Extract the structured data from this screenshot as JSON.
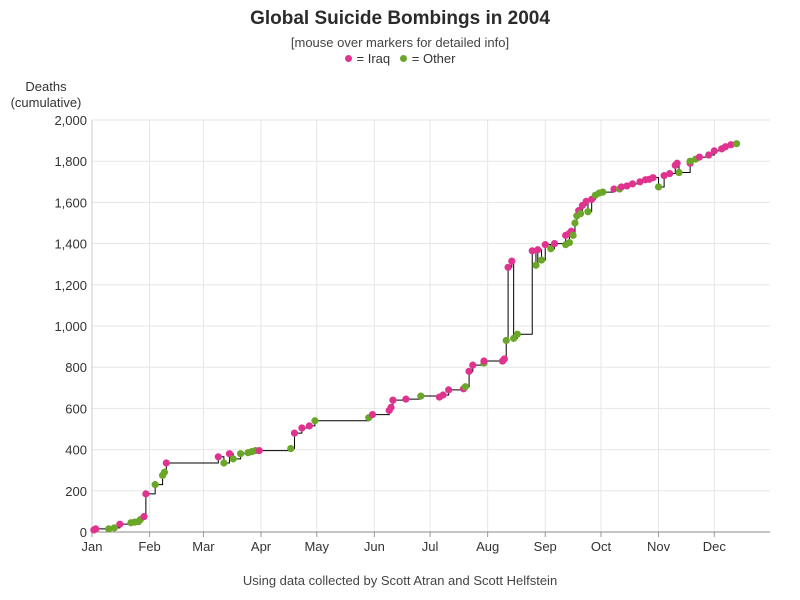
{
  "chart_data": {
    "type": "line",
    "title": "Global Suicide Bombings in 2004",
    "subtitle": "[mouse over markers for detailed info]",
    "ylabel": "Deaths (cumulative)",
    "ylabel_lines": [
      "Deaths",
      "(cumulative)"
    ],
    "xlabel": "",
    "footer": "Using data collected by Scott Atran and Scott Helfstein",
    "ylim": [
      0,
      2000
    ],
    "y_ticks": [
      0,
      200,
      400,
      600,
      800,
      1000,
      1200,
      1400,
      1600,
      1800,
      2000
    ],
    "y_tick_labels": [
      "0",
      "200",
      "400",
      "600",
      "800",
      "1,000",
      "1,200",
      "1,400",
      "1,600",
      "1,800",
      "2,000"
    ],
    "x_ticks": [
      1,
      32,
      61,
      92,
      122,
      153,
      183,
      214,
      245,
      275,
      306,
      336
    ],
    "x_tick_labels": [
      "Jan",
      "Feb",
      "Mar",
      "Apr",
      "May",
      "Jun",
      "Jul",
      "Aug",
      "Sep",
      "Oct",
      "Nov",
      "Dec"
    ],
    "xlim": [
      1,
      366
    ],
    "grid": true,
    "legend": [
      {
        "label": "= Iraq",
        "color": "#e0338f"
      },
      {
        "label": "= Other",
        "color": "#6aa628"
      }
    ],
    "line_color": "#000000",
    "series": [
      {
        "name": "Iraq",
        "color": "#e0338f",
        "points": [
          [
            2,
            10
          ],
          [
            3,
            15
          ],
          [
            16,
            38
          ],
          [
            29,
            75
          ],
          [
            30,
            185
          ],
          [
            41,
            335
          ],
          [
            69,
            365
          ],
          [
            75,
            380
          ],
          [
            91,
            395
          ],
          [
            110,
            480
          ],
          [
            114,
            505
          ],
          [
            118,
            515
          ],
          [
            152,
            570
          ],
          [
            161,
            590
          ],
          [
            162,
            605
          ],
          [
            163,
            640
          ],
          [
            170,
            645
          ],
          [
            188,
            655
          ],
          [
            190,
            665
          ],
          [
            193,
            690
          ],
          [
            201,
            695
          ],
          [
            204,
            780
          ],
          [
            206,
            810
          ],
          [
            212,
            830
          ],
          [
            222,
            830
          ],
          [
            223,
            840
          ],
          [
            225,
            1285
          ],
          [
            227,
            1315
          ],
          [
            238,
            1365
          ],
          [
            241,
            1370
          ],
          [
            245,
            1395
          ],
          [
            250,
            1400
          ],
          [
            256,
            1440
          ],
          [
            258,
            1450
          ],
          [
            259,
            1460
          ],
          [
            263,
            1560
          ],
          [
            265,
            1585
          ],
          [
            267,
            1605
          ],
          [
            270,
            1615
          ],
          [
            282,
            1665
          ],
          [
            286,
            1675
          ],
          [
            289,
            1680
          ],
          [
            292,
            1690
          ],
          [
            296,
            1700
          ],
          [
            299,
            1710
          ],
          [
            301,
            1712
          ],
          [
            303,
            1720
          ],
          [
            309,
            1730
          ],
          [
            312,
            1740
          ],
          [
            315,
            1780
          ],
          [
            316,
            1790
          ],
          [
            323,
            1790
          ],
          [
            328,
            1820
          ],
          [
            333,
            1830
          ],
          [
            336,
            1850
          ],
          [
            340,
            1860
          ],
          [
            342,
            1870
          ],
          [
            345,
            1880
          ]
        ]
      },
      {
        "name": "Other",
        "color": "#6aa628",
        "points": [
          [
            10,
            15
          ],
          [
            13,
            20
          ],
          [
            22,
            45
          ],
          [
            24,
            48
          ],
          [
            26,
            50
          ],
          [
            27,
            60
          ],
          [
            35,
            230
          ],
          [
            39,
            275
          ],
          [
            40,
            290
          ],
          [
            72,
            335
          ],
          [
            77,
            355
          ],
          [
            81,
            380
          ],
          [
            85,
            385
          ],
          [
            87,
            390
          ],
          [
            89,
            395
          ],
          [
            108,
            405
          ],
          [
            121,
            540
          ],
          [
            150,
            555
          ],
          [
            178,
            660
          ],
          [
            202,
            705
          ],
          [
            212,
            820
          ],
          [
            224,
            930
          ],
          [
            228,
            940
          ],
          [
            230,
            960
          ],
          [
            240,
            1295
          ],
          [
            243,
            1320
          ],
          [
            248,
            1375
          ],
          [
            256,
            1395
          ],
          [
            258,
            1405
          ],
          [
            260,
            1440
          ],
          [
            261,
            1500
          ],
          [
            262,
            1535
          ],
          [
            264,
            1545
          ],
          [
            268,
            1555
          ],
          [
            272,
            1635
          ],
          [
            274,
            1645
          ],
          [
            276,
            1650
          ],
          [
            285,
            1665
          ],
          [
            306,
            1675
          ],
          [
            317,
            1745
          ],
          [
            323,
            1800
          ],
          [
            326,
            1810
          ],
          [
            348,
            1885
          ]
        ]
      }
    ]
  }
}
